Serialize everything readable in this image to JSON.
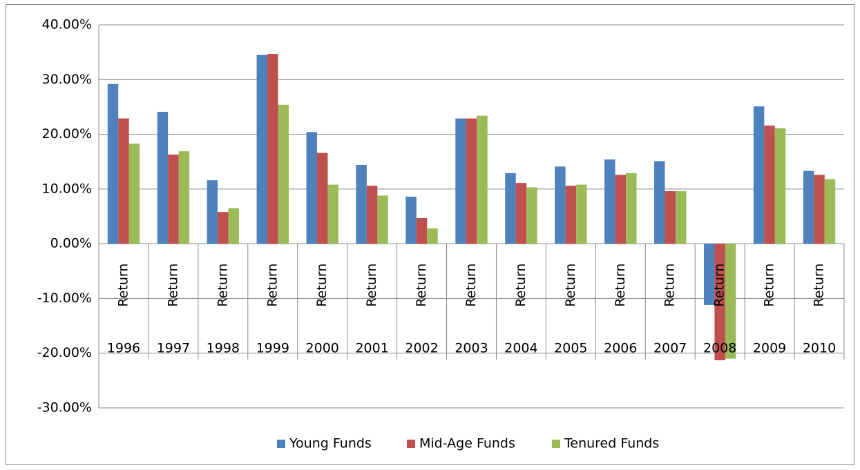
{
  "chart_data": {
    "type": "bar",
    "categories": [
      "1996",
      "1997",
      "1998",
      "1999",
      "2000",
      "2001",
      "2002",
      "2003",
      "2004",
      "2005",
      "2006",
      "2007",
      "2008",
      "2009",
      "2010"
    ],
    "category_sublabels": [
      "Return",
      "Return",
      "Return",
      "Return",
      "Return",
      "Return",
      "Return",
      "Return",
      "Return",
      "Return",
      "Return",
      "Return",
      "Return",
      "Return",
      "Return"
    ],
    "series": [
      {
        "name": "Young Funds",
        "color": "#4f81bd",
        "values": [
          29.2,
          24.1,
          11.6,
          34.5,
          20.4,
          14.4,
          8.6,
          22.9,
          12.9,
          14.1,
          15.4,
          15.1,
          -11.2,
          25.1,
          13.3
        ]
      },
      {
        "name": "Mid-Age Funds",
        "color": "#c0504d",
        "values": [
          22.9,
          16.3,
          5.8,
          34.7,
          16.6,
          10.6,
          4.7,
          22.9,
          11.1,
          10.6,
          12.6,
          9.6,
          -21.3,
          21.6,
          12.6
        ]
      },
      {
        "name": "Tenured Funds",
        "color": "#9bbb59",
        "values": [
          18.3,
          16.9,
          6.5,
          25.4,
          10.8,
          8.8,
          2.8,
          23.4,
          10.3,
          10.8,
          12.9,
          9.6,
          -21.0,
          21.1,
          11.8
        ]
      }
    ],
    "ylim": [
      -30,
      40
    ],
    "yticks": [
      {
        "value": -30,
        "label": "-30.00%"
      },
      {
        "value": -20,
        "label": "-20.00%"
      },
      {
        "value": -10,
        "label": "-10.00%"
      },
      {
        "value": 0,
        "label": "0.00%"
      },
      {
        "value": 10,
        "label": "10.00%"
      },
      {
        "value": 20,
        "label": "20.00%"
      },
      {
        "value": 30,
        "label": "30.00%"
      },
      {
        "value": 40,
        "label": "40.00%"
      }
    ],
    "grid": true,
    "legend": "bottom"
  }
}
